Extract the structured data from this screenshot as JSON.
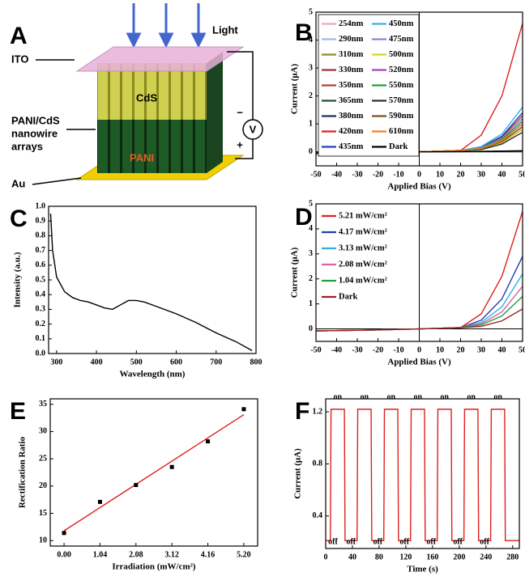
{
  "diagram": {
    "panel": "A",
    "light": "Light",
    "ito": "ITO",
    "cds": "CdS",
    "array_label": [
      "PANI/CdS",
      "nanowire",
      "arrays"
    ],
    "pani": "PANI",
    "au": "Au",
    "meter": "V",
    "minus": "−",
    "plus": "+"
  },
  "chart_data": [
    {
      "panel": "B",
      "type": "line",
      "xlabel": "Applied Bias (V)",
      "ylabel": "Current (μA)",
      "x": [
        -50,
        -25,
        0,
        20,
        30,
        40,
        50
      ],
      "xlim": [
        -50,
        50
      ],
      "xticks": [
        -50,
        -40,
        -30,
        -20,
        -10,
        0,
        10,
        20,
        30,
        40,
        50
      ],
      "ylim": [
        -0.5,
        5
      ],
      "yticks": [
        0,
        1,
        2,
        3,
        4,
        5
      ],
      "zero_lines": true,
      "legend": "upper left",
      "legend_columns": 2,
      "series": [
        {
          "name": "254nm",
          "color": "#f4a0c8",
          "values": [
            -0.08,
            -0.05,
            0,
            0.05,
            0.12,
            0.4,
            1.0
          ]
        },
        {
          "name": "290nm",
          "color": "#a0b8e8",
          "values": [
            -0.08,
            -0.05,
            0,
            0.05,
            0.14,
            0.48,
            1.2
          ]
        },
        {
          "name": "310nm",
          "color": "#8a8a30",
          "values": [
            -0.08,
            -0.05,
            0,
            0.05,
            0.11,
            0.36,
            0.9
          ]
        },
        {
          "name": "330nm",
          "color": "#a03040",
          "values": [
            -0.08,
            -0.05,
            0,
            0.05,
            0.13,
            0.44,
            1.1
          ]
        },
        {
          "name": "350nm",
          "color": "#b04030",
          "values": [
            -0.08,
            -0.05,
            0,
            0.05,
            0.16,
            0.52,
            1.3
          ]
        },
        {
          "name": "365nm",
          "color": "#205030",
          "values": [
            -0.08,
            -0.05,
            0,
            0.05,
            0.12,
            0.4,
            1.0
          ]
        },
        {
          "name": "380nm",
          "color": "#203060",
          "values": [
            -0.08,
            -0.05,
            0,
            0.05,
            0.1,
            0.32,
            0.8
          ]
        },
        {
          "name": "420nm",
          "color": "#e02020",
          "values": [
            -0.08,
            -0.05,
            0,
            0.05,
            0.6,
            2.0,
            4.6
          ]
        },
        {
          "name": "435nm",
          "color": "#2040c0",
          "values": [
            -0.08,
            -0.05,
            0,
            0.05,
            0.17,
            0.56,
            1.4
          ]
        },
        {
          "name": "450nm",
          "color": "#40b0e0",
          "values": [
            -0.08,
            -0.05,
            0,
            0.05,
            0.19,
            0.64,
            1.6
          ]
        },
        {
          "name": "475nm",
          "color": "#9080d0",
          "values": [
            -0.08,
            -0.05,
            0,
            0.05,
            0.14,
            0.48,
            1.2
          ]
        },
        {
          "name": "500nm",
          "color": "#e0d020",
          "values": [
            -0.08,
            -0.05,
            0,
            0.05,
            0.1,
            0.32,
            0.8
          ]
        },
        {
          "name": "520nm",
          "color": "#a040c0",
          "values": [
            -0.08,
            -0.05,
            0,
            0.05,
            0.12,
            0.4,
            1.0
          ]
        },
        {
          "name": "550nm",
          "color": "#20a040",
          "values": [
            -0.08,
            -0.05,
            0,
            0.05,
            0.13,
            0.44,
            1.1
          ]
        },
        {
          "name": "570nm",
          "color": "#303030",
          "values": [
            -0.08,
            -0.05,
            0,
            0.05,
            0.08,
            0.28,
            0.7
          ]
        },
        {
          "name": "590nm",
          "color": "#805020",
          "values": [
            -0.08,
            -0.05,
            0,
            0.05,
            0.11,
            0.36,
            0.9
          ]
        },
        {
          "name": "610nm",
          "color": "#f08020",
          "values": [
            -0.08,
            -0.05,
            0,
            0.05,
            0.12,
            0.4,
            1.0
          ]
        },
        {
          "name": "Dark",
          "color": "#000000",
          "values": [
            -0.04,
            -0.02,
            0,
            0.01,
            0.02,
            0.03,
            0.04
          ]
        }
      ]
    },
    {
      "panel": "C",
      "type": "line",
      "xlabel": "Wavelength (nm)",
      "ylabel": "Intensity (a.u.)",
      "color": "#000000",
      "x": [
        285,
        290,
        300,
        320,
        340,
        360,
        380,
        400,
        420,
        440,
        460,
        480,
        500,
        520,
        550,
        600,
        650,
        700,
        750,
        790
      ],
      "values": [
        0.95,
        0.7,
        0.52,
        0.42,
        0.38,
        0.36,
        0.35,
        0.33,
        0.31,
        0.3,
        0.33,
        0.36,
        0.36,
        0.35,
        0.32,
        0.27,
        0.21,
        0.14,
        0.08,
        0.02
      ],
      "xlim": [
        280,
        800
      ],
      "xticks": [
        300,
        400,
        500,
        600,
        700,
        800
      ],
      "ylim": [
        0,
        1
      ],
      "yticks": [
        {
          "value": 0,
          "label": "0.0"
        },
        0.1,
        0.2,
        0.3,
        0.4,
        0.5,
        0.6,
        0.7,
        0.8,
        0.9,
        {
          "value": 1,
          "label": "1.0"
        }
      ]
    },
    {
      "panel": "D",
      "type": "line",
      "xlabel": "Applied Bias (V)",
      "ylabel": "Current (μA)",
      "x": [
        -50,
        -25,
        0,
        20,
        30,
        40,
        50
      ],
      "xlim": [
        -50,
        50
      ],
      "xticks": [
        -50,
        -40,
        -30,
        -20,
        -10,
        0,
        10,
        20,
        30,
        40,
        50
      ],
      "ylim": [
        -0.5,
        5
      ],
      "yticks": [
        0,
        1,
        2,
        3,
        4,
        5
      ],
      "zero_lines": true,
      "legend": "upper left",
      "legend_columns": 1,
      "series": [
        {
          "name": "5.21 mW/cm²",
          "color": "#e02020",
          "values": [
            -0.08,
            -0.05,
            0,
            0.05,
            0.6,
            2.1,
            4.7
          ]
        },
        {
          "name": "4.17 mW/cm²",
          "color": "#2040b0",
          "values": [
            -0.08,
            -0.05,
            0,
            0.05,
            0.35,
            1.2,
            2.9
          ]
        },
        {
          "name": "3.13 mW/cm²",
          "color": "#30b0e0",
          "values": [
            -0.08,
            -0.05,
            0,
            0.05,
            0.26,
            0.88,
            2.2
          ]
        },
        {
          "name": "2.08 mW/cm²",
          "color": "#e060a0",
          "values": [
            -0.08,
            -0.05,
            0,
            0.05,
            0.2,
            0.68,
            1.7
          ]
        },
        {
          "name": "1.04 mW/cm²",
          "color": "#20a040",
          "values": [
            -0.08,
            -0.05,
            0,
            0.05,
            0.16,
            0.52,
            1.3
          ]
        },
        {
          "name": "Dark",
          "color": "#a02020",
          "values": [
            -0.08,
            -0.05,
            0,
            0.05,
            0.1,
            0.32,
            0.8
          ]
        }
      ]
    },
    {
      "panel": "E",
      "type": "scatter",
      "xlabel": "Irradiation (mW/cm²)",
      "ylabel": "Rectification Ratio",
      "color": "#000000",
      "x": [
        0,
        1.04,
        2.08,
        3.12,
        4.16,
        5.2
      ],
      "values": [
        11.4,
        17.1,
        20.2,
        23.5,
        28.2,
        34.1
      ],
      "fit": {
        "x": [
          0,
          5.2
        ],
        "values": [
          11.8,
          33.1
        ],
        "color": "#e02020"
      },
      "xlim": [
        -0.4,
        5.6
      ],
      "xticks": [
        {
          "value": 0,
          "label": "0.00"
        },
        1.04,
        2.08,
        3.12,
        4.16,
        {
          "value": 5.2,
          "label": "5.20"
        }
      ],
      "ylim": [
        9,
        36
      ],
      "yticks": [
        10,
        15,
        20,
        25,
        30,
        35
      ]
    },
    {
      "panel": "F",
      "type": "line",
      "xlabel": "Time (s)",
      "ylabel": "Current (μA)",
      "color": "#e02020",
      "x": [
        0,
        7,
        8,
        28,
        29,
        47,
        48,
        68,
        69,
        87,
        88,
        108,
        109,
        127,
        128,
        148,
        149,
        167,
        168,
        188,
        189,
        207,
        208,
        228,
        229,
        247,
        248,
        268,
        269,
        290
      ],
      "values": [
        0.21,
        0.21,
        1.22,
        1.22,
        0.21,
        0.21,
        1.22,
        1.22,
        0.21,
        0.21,
        1.22,
        1.22,
        0.21,
        0.21,
        1.22,
        1.22,
        0.21,
        0.21,
        1.22,
        1.22,
        0.21,
        0.21,
        1.22,
        1.22,
        0.21,
        0.21,
        1.22,
        1.22,
        0.21,
        0.21
      ],
      "on_labels": [
        "on",
        "on",
        "on",
        "on",
        "on",
        "on",
        "on"
      ],
      "off_labels": [
        "off",
        "off",
        "off",
        "off",
        "off",
        "off",
        "off"
      ],
      "xlim": [
        0,
        290
      ],
      "xticks": [
        0,
        40,
        80,
        120,
        160,
        200,
        240,
        280
      ],
      "ylim": [
        0.15,
        1.3
      ],
      "yticks": [
        0.4,
        0.8,
        1.2
      ]
    }
  ]
}
